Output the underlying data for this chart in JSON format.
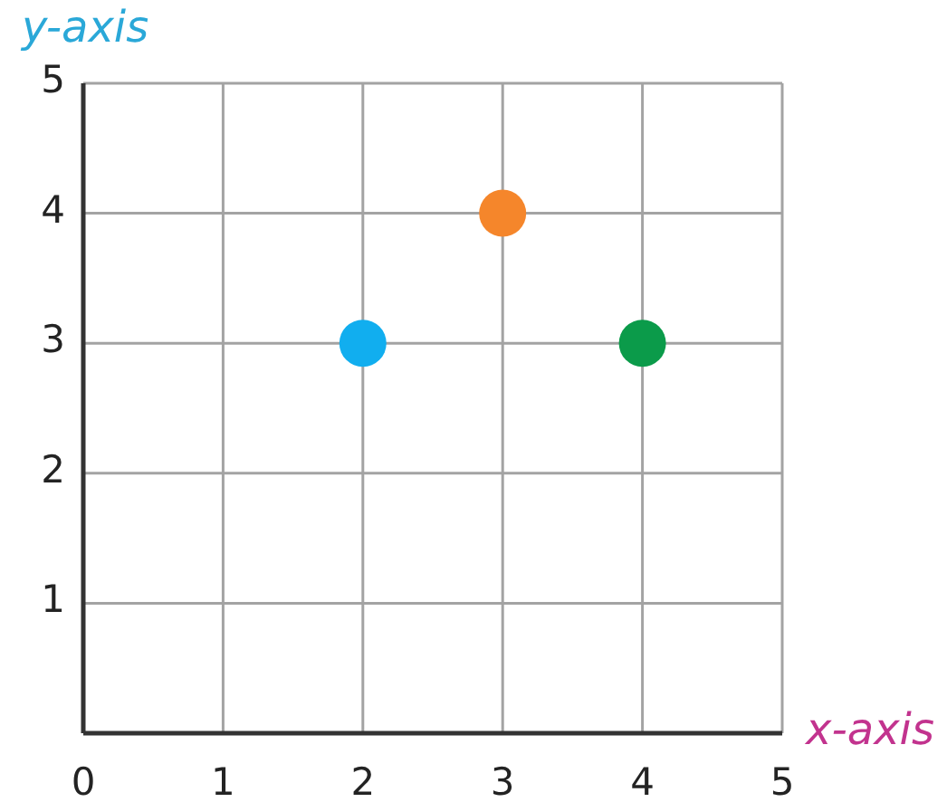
{
  "chart_data": {
    "type": "scatter",
    "xlabel": "x-axis",
    "ylabel": "y-axis",
    "x": [
      2,
      3,
      4
    ],
    "values": [
      3,
      4,
      3
    ],
    "colors": [
      "#11aeef",
      "#f5862b",
      "#0b9b4a"
    ],
    "xlim": [
      0,
      5
    ],
    "ylim": [
      0,
      5
    ],
    "xticks": [
      0,
      1,
      2,
      3,
      4,
      5
    ],
    "yticks": [
      1,
      2,
      3,
      4,
      5
    ],
    "grid": true,
    "marker": "circle"
  }
}
